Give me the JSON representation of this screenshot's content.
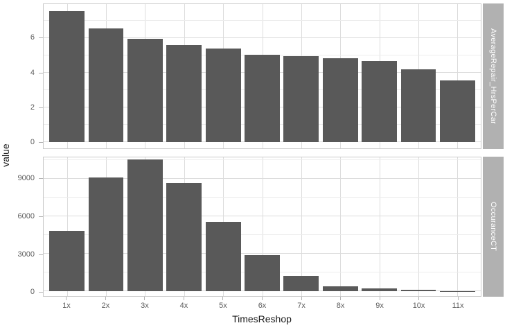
{
  "chart_data": {
    "type": "bar",
    "layout": "two stacked facet panels sharing x axis, facet strips on right side",
    "xlabel": "TimesReshop",
    "ylabel": "value",
    "categories": [
      "1x",
      "2x",
      "3x",
      "4x",
      "5x",
      "6x",
      "7x",
      "8x",
      "9x",
      "10x",
      "11x"
    ],
    "legend": "none",
    "grid": "on",
    "series": [
      {
        "name": "AverageRepair_HrsPerCar",
        "values": [
          7.56,
          6.54,
          5.94,
          5.6,
          5.4,
          5.04,
          4.94,
          4.85,
          4.69,
          4.21,
          3.55
        ],
        "yticks": [
          0,
          2,
          4,
          6
        ],
        "yticks_minor": [
          1,
          3,
          5,
          7
        ],
        "ylim": [
          -0.38,
          7.96
        ]
      },
      {
        "name": "OccuranceCT",
        "values": [
          4850,
          9100,
          10550,
          8700,
          5550,
          2900,
          1250,
          430,
          220,
          110,
          30
        ],
        "yticks": [
          0,
          3000,
          6000,
          9000
        ],
        "yticks_minor": [
          1500,
          4500,
          7500,
          10500
        ],
        "ylim": [
          -370,
          10730
        ]
      }
    ],
    "colors": {
      "bar": "#595959",
      "strip_bg": "#b1b1b1",
      "strip_text": "#ffffff",
      "grid_major": "#dcdcdc",
      "grid_minor": "#ececec",
      "panel_border": "#c9c9c9",
      "axis_text": "#5c5c5c",
      "axis_title": "#1a1a1a",
      "tick_mark": "#b3b3b3",
      "background": "#ffffff"
    }
  }
}
